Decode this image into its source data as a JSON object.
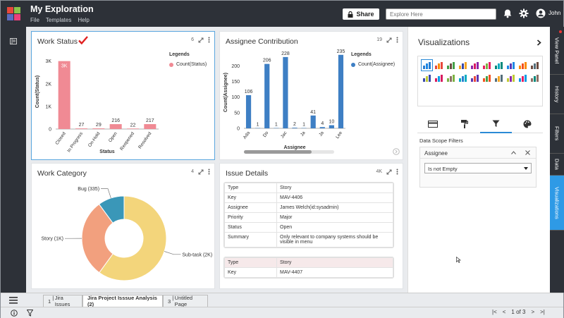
{
  "app": {
    "title": "My Exploration",
    "menu": [
      "File",
      "Templates",
      "Help"
    ],
    "share_label": "Share",
    "explore_placeholder": "Explore Here",
    "user_name": "John"
  },
  "panels": {
    "work_status": {
      "title": "Work Status",
      "count": "6",
      "legend_title": "Legends",
      "chart_data": {
        "type": "bar",
        "categories": [
          "Closed",
          "In Progress",
          "On-Hold",
          "Open",
          "Reopened",
          "Resolved"
        ],
        "values": [
          3000,
          27,
          29,
          216,
          22,
          217
        ],
        "data_labels": [
          "3K",
          "27",
          "29",
          "216",
          "22",
          "217"
        ],
        "series": [
          {
            "name": "Count(Status)",
            "values": [
              3000,
              27,
              29,
              216,
              22,
              217
            ]
          }
        ],
        "xlabel": "Status",
        "ylabel": "Count(Status)",
        "yticks": [
          "0",
          "1K",
          "2K",
          "3K"
        ],
        "ylim": [
          0,
          3300
        ],
        "color": "#f08a94",
        "legend": "right"
      }
    },
    "assignee_contribution": {
      "title": "Assignee Contribution",
      "count": "19",
      "legend_title": "Legends",
      "chart_data": {
        "type": "bar",
        "categories": [
          "Ada",
          "",
          "Do",
          "",
          "Jac",
          "",
          "Ja",
          "",
          "Ja",
          "",
          "Lee"
        ],
        "values": [
          106,
          1,
          206,
          1,
          228,
          2,
          1,
          41,
          4,
          10,
          235
        ],
        "data_labels": [
          "106",
          "1",
          "206",
          "1",
          "228",
          "2",
          "1",
          "41",
          "4",
          "10",
          "235"
        ],
        "series": [
          {
            "name": "Count(Assignee)",
            "values": [
              106,
              1,
              206,
              1,
              228,
              2,
              1,
              41,
              4,
              10,
              235
            ]
          }
        ],
        "xlabel": "Assignee",
        "ylabel": "Count(Assignee)",
        "yticks": [
          "0",
          "50",
          "100",
          "150",
          "200"
        ],
        "ylim": [
          0,
          230
        ],
        "color": "#3e7fc4",
        "legend": "right"
      }
    },
    "work_category": {
      "title": "Work Category",
      "count": "4",
      "chart_data": {
        "type": "pie",
        "categories": [
          "Sub-task",
          "Story",
          "Bug"
        ],
        "values": [
          2000,
          1000,
          335
        ],
        "labels": [
          "Sub-task (2K)",
          "Story (1K)",
          "Bug (335)"
        ],
        "colors": [
          "#f3d57b",
          "#f2a07e",
          "#3a97b8"
        ]
      }
    },
    "issue_details": {
      "title": "Issue Details",
      "count": "4K",
      "records": [
        [
          [
            "Type",
            "Story"
          ],
          [
            "Key",
            "MAV-4406"
          ],
          [
            "Assignee",
            "James Welch(id:sysadmin)"
          ],
          [
            "Priority",
            "Major"
          ],
          [
            "Status",
            "Open"
          ],
          [
            "Summary",
            "Only relevant to company systems should be visible in menu"
          ]
        ],
        [
          [
            "Type",
            "Story"
          ],
          [
            "Key",
            "MAV-4407"
          ]
        ]
      ]
    }
  },
  "viz_panel": {
    "title": "Visualizations",
    "scope_label": "Data Scope Filters",
    "filter_field": "Assignee",
    "filter_value": "Is not Empty"
  },
  "right_tabs": [
    "View Panel",
    "History",
    "Filters",
    "Data",
    "Visualizations"
  ],
  "page_tabs": [
    {
      "num": "1",
      "label": "Jira Issues"
    },
    {
      "num": "",
      "label": "Jira Project Isssue Analysis (2)"
    },
    {
      "num": "3",
      "label": "Untitled Page"
    }
  ],
  "pagination": "1 of 3",
  "colors": {
    "accent": "#2e9ae6",
    "topbar": "#2d3138",
    "bar_pink": "#f08a94",
    "bar_blue": "#3e7fc4"
  }
}
